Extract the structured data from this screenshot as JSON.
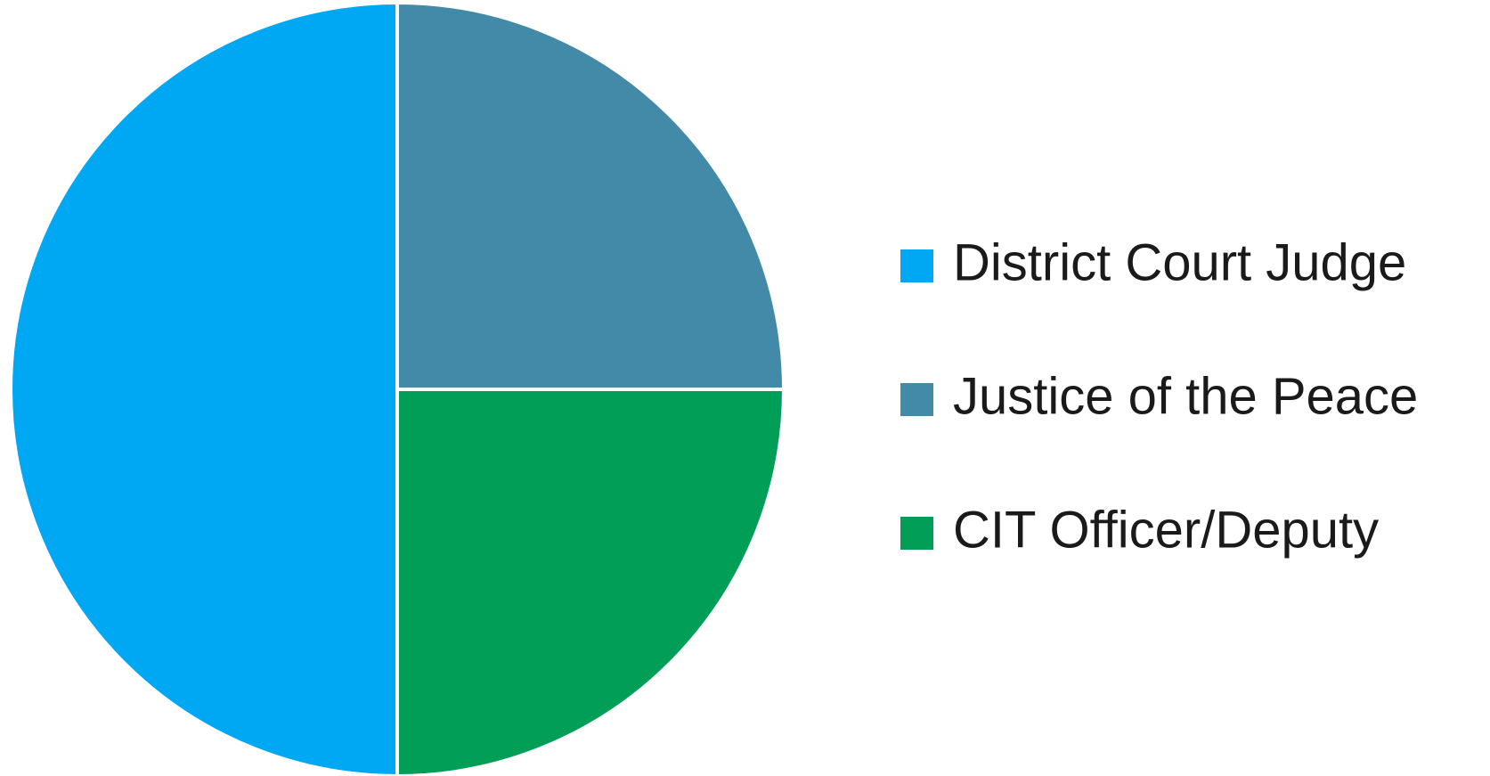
{
  "chart_data": {
    "type": "pie",
    "categories": [
      "District Court Judge",
      "Justice of the Peace",
      "CIT Officer/Deputy"
    ],
    "values": [
      50,
      25,
      25
    ],
    "colors": [
      "#00a8f3",
      "#438aa8",
      "#009e57"
    ],
    "legend": "right"
  }
}
